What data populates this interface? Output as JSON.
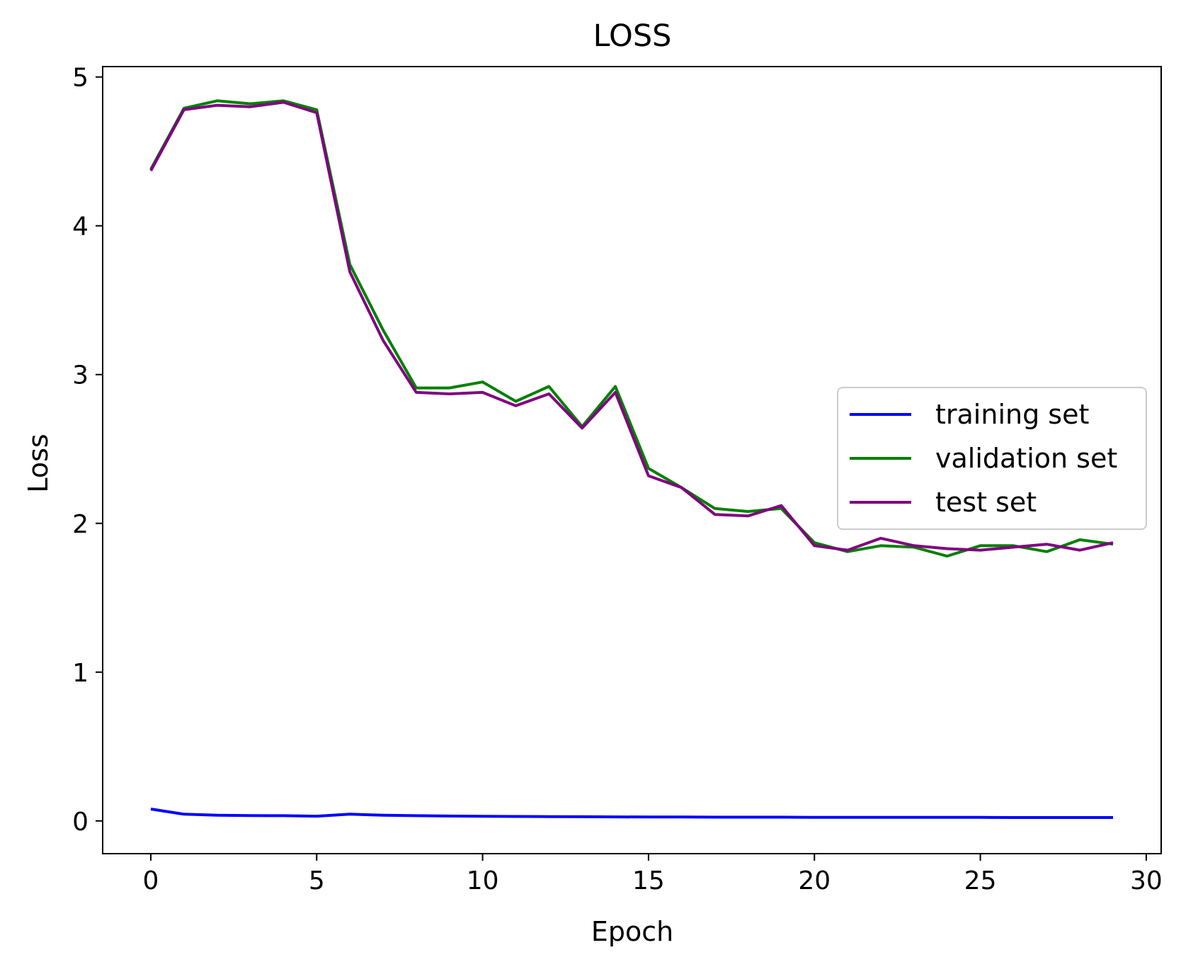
{
  "chart_data": {
    "type": "line",
    "title": "LOSS",
    "xlabel": "Epoch",
    "ylabel": "Loss",
    "xlim": [
      -1.45,
      30.45
    ],
    "ylim": [
      -0.22,
      5.07
    ],
    "xticks": [
      0,
      5,
      10,
      15,
      20,
      25,
      30
    ],
    "yticks": [
      0,
      1,
      2,
      3,
      4,
      5
    ],
    "grid": false,
    "legend": "center-right",
    "x": [
      0,
      1,
      2,
      3,
      4,
      5,
      6,
      7,
      8,
      9,
      10,
      11,
      12,
      13,
      14,
      15,
      16,
      17,
      18,
      19,
      20,
      21,
      22,
      23,
      24,
      25,
      26,
      27,
      28,
      29
    ],
    "series": [
      {
        "name": "training set",
        "color": "#0000ff",
        "values": [
          0.08,
          0.045,
          0.038,
          0.036,
          0.035,
          0.032,
          0.045,
          0.038,
          0.035,
          0.033,
          0.031,
          0.03,
          0.029,
          0.028,
          0.027,
          0.026,
          0.026,
          0.025,
          0.025,
          0.025,
          0.024,
          0.024,
          0.024,
          0.024,
          0.024,
          0.024,
          0.023,
          0.023,
          0.023,
          0.023
        ]
      },
      {
        "name": "validation set",
        "color": "#008000",
        "values": [
          4.38,
          4.79,
          4.84,
          4.82,
          4.84,
          4.78,
          3.74,
          3.3,
          2.91,
          2.91,
          2.95,
          2.82,
          2.92,
          2.65,
          2.92,
          2.37,
          2.24,
          2.1,
          2.08,
          2.1,
          1.87,
          1.81,
          1.85,
          1.84,
          1.78,
          1.85,
          1.85,
          1.81,
          1.89,
          1.86
        ]
      },
      {
        "name": "test set",
        "color": "#800080",
        "values": [
          4.37,
          4.78,
          4.81,
          4.8,
          4.83,
          4.76,
          3.69,
          3.23,
          2.88,
          2.87,
          2.88,
          2.79,
          2.87,
          2.64,
          2.88,
          2.32,
          2.24,
          2.06,
          2.05,
          2.12,
          1.85,
          1.82,
          1.9,
          1.85,
          1.83,
          1.82,
          1.84,
          1.86,
          1.82,
          1.87
        ]
      }
    ]
  }
}
